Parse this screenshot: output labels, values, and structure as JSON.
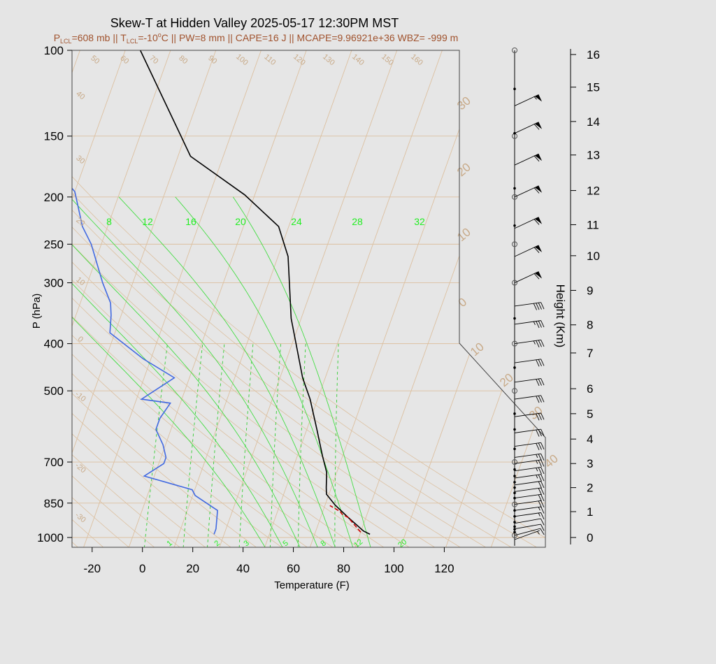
{
  "chart_data": {
    "type": "line",
    "chart_kind": "Skew-T log-P sounding",
    "title": "Skew-T at Hidden Valley 2025-05-17 12:30PM MST",
    "subtitle": {
      "p_lcl": {
        "prefix": "P",
        "sub": "LCL",
        "text": "=608 mb"
      },
      "t_lcl": {
        "prefix": "T",
        "sub": "LCL",
        "text": "=-10",
        "sup": "o",
        "unit": "C"
      },
      "rest": "PW=8 mm || CAPE=16 J || MCAPE=9.96921e+36 WBZ= -999 m",
      "separator": " || "
    },
    "xlabel": "Temperature (F)",
    "ylabel": "P (hPa)",
    "y2label": "Height (Km)",
    "xlim": [
      -28,
      126
    ],
    "ylim": [
      1050,
      100
    ],
    "y_scale": "log",
    "x_ticks": [
      -20,
      0,
      20,
      40,
      60,
      80,
      100,
      120
    ],
    "p_ticks": [
      1000,
      850,
      700,
      500,
      400,
      300,
      250,
      200,
      150,
      100
    ],
    "height_ticks": [
      0,
      1,
      2,
      3,
      4,
      5,
      6,
      7,
      8,
      9,
      10,
      11,
      12,
      13,
      14,
      15,
      16
    ],
    "height_axis": [
      {
        "km": 0,
        "p": 1000
      },
      {
        "km": 1,
        "p": 885
      },
      {
        "km": 2,
        "p": 790
      },
      {
        "km": 3,
        "p": 705
      },
      {
        "km": 4,
        "p": 628
      },
      {
        "km": 5,
        "p": 557
      },
      {
        "km": 6,
        "p": 495
      },
      {
        "km": 7,
        "p": 418
      },
      {
        "km": 8,
        "p": 366
      },
      {
        "km": 9,
        "p": 311
      },
      {
        "km": 10,
        "p": 264
      },
      {
        "km": 11,
        "p": 228
      },
      {
        "km": 12,
        "p": 194
      },
      {
        "km": 13,
        "p": 164
      },
      {
        "km": 14,
        "p": 140
      },
      {
        "km": 15,
        "p": 119
      },
      {
        "km": 16,
        "p": 102
      }
    ],
    "dry_adiabat_labels": [
      "-30",
      "-20",
      "-10",
      "0",
      "10",
      "20",
      "30",
      "40",
      "50",
      "60",
      "70",
      "80",
      "90",
      "100",
      "110",
      "120",
      "130",
      "140",
      "150",
      "160"
    ],
    "moist_adiabat_labels": [
      "8",
      "12",
      "16",
      "20",
      "24",
      "28",
      "32"
    ],
    "mixing_ratio_labels": [
      "1",
      "2",
      "3",
      "5",
      "8",
      "12",
      "20"
    ],
    "isotherm_labels": [
      "30",
      "20",
      "10",
      "0",
      "10",
      "20",
      "30",
      "40"
    ],
    "series": [
      {
        "key": "temperature",
        "color": "#000000",
        "points": [
          [
            90,
            985
          ],
          [
            87,
            970
          ],
          [
            79,
            910
          ],
          [
            72,
            858
          ],
          [
            67,
            815
          ],
          [
            66,
            790
          ],
          [
            64,
            735
          ],
          [
            60,
            680
          ],
          [
            54,
            600
          ],
          [
            47,
            520
          ],
          [
            41,
            470
          ],
          [
            28,
            355
          ],
          [
            18,
            265
          ],
          [
            10,
            230
          ],
          [
            -8,
            198
          ],
          [
            -35,
            165
          ],
          [
            -70,
            100
          ]
        ]
      },
      {
        "key": "dewpoint",
        "color": "#4169e1",
        "points": [
          [
            28,
            985
          ],
          [
            28,
            960
          ],
          [
            26,
            880
          ],
          [
            15,
            820
          ],
          [
            13,
            798
          ],
          [
            -8,
            748
          ],
          [
            -2,
            705
          ],
          [
            -2,
            685
          ],
          [
            -5,
            645
          ],
          [
            -10,
            600
          ],
          [
            -10,
            570
          ],
          [
            -8,
            530
          ],
          [
            -20,
            520
          ],
          [
            -10,
            470
          ],
          [
            -25,
            430
          ],
          [
            -42,
            380
          ],
          [
            -44,
            350
          ],
          [
            -46,
            330
          ],
          [
            -52,
            300
          ],
          [
            -62,
            250
          ],
          [
            -68,
            230
          ],
          [
            -76,
            195
          ],
          [
            -90,
            170
          ],
          [
            -100,
            135
          ],
          [
            -125,
            100
          ]
        ]
      },
      {
        "key": "parcel",
        "color": "#cc0000",
        "points": [
          [
            86,
            975
          ],
          [
            79,
            910
          ],
          [
            76,
            895
          ],
          [
            75,
            885
          ],
          [
            70,
            860
          ]
        ]
      }
    ],
    "colors": {
      "background": "#e5e5e5",
      "plot_background": "#e6e6e6",
      "grid": "#dcc0a0",
      "moist_adiabat": "#44dd44",
      "mixing_ratio": "#33cc33",
      "label_tan": "#c8aa88",
      "label_green": "#22ee22",
      "subtitle": "#a0522d"
    },
    "wind_barbs": [
      {
        "p": 1010,
        "dir": 250,
        "kt": 5
      },
      {
        "p": 990,
        "dir": 255,
        "kt": 10
      },
      {
        "p": 960,
        "dir": 260,
        "kt": 10
      },
      {
        "p": 935,
        "dir": 260,
        "kt": 12
      },
      {
        "p": 905,
        "dir": 262,
        "kt": 15
      },
      {
        "p": 880,
        "dir": 262,
        "kt": 15
      },
      {
        "p": 855,
        "dir": 262,
        "kt": 18
      },
      {
        "p": 830,
        "dir": 262,
        "kt": 20
      },
      {
        "p": 805,
        "dir": 262,
        "kt": 20
      },
      {
        "p": 780,
        "dir": 262,
        "kt": 22
      },
      {
        "p": 755,
        "dir": 262,
        "kt": 25
      },
      {
        "p": 730,
        "dir": 262,
        "kt": 25
      },
      {
        "p": 705,
        "dir": 262,
        "kt": 25
      },
      {
        "p": 685,
        "dir": 262,
        "kt": 25
      },
      {
        "p": 650,
        "dir": 262,
        "kt": 30
      },
      {
        "p": 610,
        "dir": 262,
        "kt": 30
      },
      {
        "p": 565,
        "dir": 262,
        "kt": 30
      },
      {
        "p": 520,
        "dir": 262,
        "kt": 30
      },
      {
        "p": 480,
        "dir": 262,
        "kt": 30
      },
      {
        "p": 438,
        "dir": 262,
        "kt": 30
      },
      {
        "p": 400,
        "dir": 262,
        "kt": 35
      },
      {
        "p": 365,
        "dir": 262,
        "kt": 35
      },
      {
        "p": 335,
        "dir": 262,
        "kt": 40
      },
      {
        "p": 300,
        "dir": 245,
        "kt": 60
      },
      {
        "p": 265,
        "dir": 245,
        "kt": 60
      },
      {
        "p": 232,
        "dir": 245,
        "kt": 60
      },
      {
        "p": 200,
        "dir": 245,
        "kt": 60
      },
      {
        "p": 172,
        "dir": 245,
        "kt": 60
      },
      {
        "p": 148,
        "dir": 245,
        "kt": 60
      },
      {
        "p": 130,
        "dir": 245,
        "kt": 55
      }
    ],
    "height_markers": [
      {
        "p": 990,
        "style": "open"
      },
      {
        "p": 975,
        "style": "dot"
      },
      {
        "p": 962,
        "style": "dot"
      },
      {
        "p": 950,
        "style": "dot"
      },
      {
        "p": 930,
        "style": "dot"
      },
      {
        "p": 905,
        "style": "dot"
      },
      {
        "p": 880,
        "style": "dot"
      },
      {
        "p": 855,
        "style": "open"
      },
      {
        "p": 830,
        "style": "dot"
      },
      {
        "p": 810,
        "style": "dot"
      },
      {
        "p": 790,
        "style": "dot"
      },
      {
        "p": 770,
        "style": "dot"
      },
      {
        "p": 748,
        "style": "dot"
      },
      {
        "p": 725,
        "style": "dot"
      },
      {
        "p": 700,
        "style": "open"
      },
      {
        "p": 658,
        "style": "dot"
      },
      {
        "p": 600,
        "style": "dot"
      },
      {
        "p": 557,
        "style": "dot"
      },
      {
        "p": 500,
        "style": "open"
      },
      {
        "p": 448,
        "style": "dot"
      },
      {
        "p": 400,
        "style": "open"
      },
      {
        "p": 355,
        "style": "dot"
      },
      {
        "p": 300,
        "style": "open"
      },
      {
        "p": 250,
        "style": "open"
      },
      {
        "p": 229,
        "style": "dot"
      },
      {
        "p": 200,
        "style": "open"
      },
      {
        "p": 192,
        "style": "dot"
      },
      {
        "p": 150,
        "style": "open"
      },
      {
        "p": 148,
        "style": "dot"
      },
      {
        "p": 120,
        "style": "dot"
      },
      {
        "p": 100,
        "style": "open"
      }
    ]
  }
}
